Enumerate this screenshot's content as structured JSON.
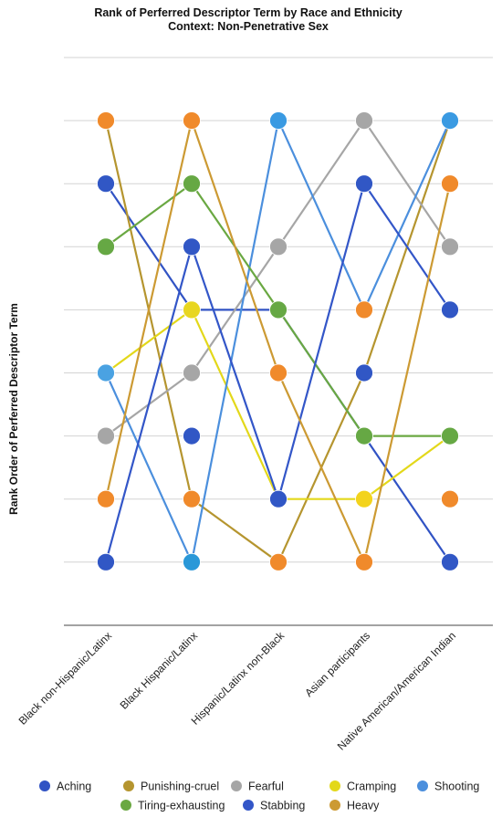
{
  "chart_data": {
    "type": "line",
    "title": "Rank of Perferred Descriptor Term by Race and Ethnicity",
    "subtitle": "Context: Non-Penetrative Sex",
    "ylabel": "Rank Order of Perferred Descriptor Term",
    "xlabel": "",
    "categories": [
      "Black non-Hispanic/Latinx",
      "Black Hispanic/Latinx",
      "Hispanic/Latinx non-Black",
      "Asian participants",
      "Native American/American Indian"
    ],
    "ylim": [
      0,
      9
    ],
    "y_reversed": true,
    "grid": true,
    "legend_position": "bottom",
    "series": [
      {
        "name": "Aching",
        "color": "#3153c4",
        "values": [
          2,
          4,
          4,
          6,
          8
        ]
      },
      {
        "name": "Punishing-cruel",
        "color": "#b5952f",
        "values": [
          1,
          7,
          8,
          5,
          1
        ]
      },
      {
        "name": "Fearful",
        "color": "#a6a6a6",
        "values": [
          6,
          5,
          3,
          1,
          3
        ]
      },
      {
        "name": "Cramping",
        "color": "#e3d81a",
        "values": [
          5,
          4,
          7,
          7,
          6
        ]
      },
      {
        "name": "Shooting",
        "color": "#4b8fdd",
        "values": [
          5,
          8,
          1,
          4,
          1
        ]
      },
      {
        "name": "Tiring-exhausting",
        "color": "#6aa842",
        "values": [
          3,
          2,
          4,
          6,
          6
        ]
      },
      {
        "name": "Stabbing",
        "color": "#3356c8",
        "values": [
          8,
          3,
          7,
          2,
          4
        ]
      },
      {
        "name": "Heavy",
        "color": "#cc9a33",
        "values": [
          7,
          1,
          5,
          8,
          2
        ]
      }
    ],
    "markers": [
      {
        "category_index": 0,
        "rank": 1,
        "color": "#f08a2b"
      },
      {
        "category_index": 0,
        "rank": 2,
        "color": "#3157c5"
      },
      {
        "category_index": 0,
        "rank": 3,
        "color": "#66a844"
      },
      {
        "category_index": 0,
        "rank": 5,
        "color": "#4aa2e2"
      },
      {
        "category_index": 0,
        "rank": 6,
        "color": "#a6a6a6"
      },
      {
        "category_index": 0,
        "rank": 7,
        "color": "#f08a2b"
      },
      {
        "category_index": 0,
        "rank": 8,
        "color": "#3157c5"
      },
      {
        "category_index": 1,
        "rank": 1,
        "color": "#f08a2b"
      },
      {
        "category_index": 1,
        "rank": 2,
        "color": "#66a844"
      },
      {
        "category_index": 1,
        "rank": 3,
        "color": "#3157c5"
      },
      {
        "category_index": 1,
        "rank": 4,
        "color": "#e8d620"
      },
      {
        "category_index": 1,
        "rank": 5,
        "color": "#a6a6a6"
      },
      {
        "category_index": 1,
        "rank": 6,
        "color": "#3157c5"
      },
      {
        "category_index": 1,
        "rank": 7,
        "color": "#f08a2b"
      },
      {
        "category_index": 1,
        "rank": 8,
        "color": "#2a98d8"
      },
      {
        "category_index": 2,
        "rank": 1,
        "color": "#3a9ae2"
      },
      {
        "category_index": 2,
        "rank": 3,
        "color": "#a6a6a6"
      },
      {
        "category_index": 2,
        "rank": 4,
        "color": "#66a844"
      },
      {
        "category_index": 2,
        "rank": 5,
        "color": "#f08a2b"
      },
      {
        "category_index": 2,
        "rank": 7,
        "color": "#3157c5"
      },
      {
        "category_index": 2,
        "rank": 8,
        "color": "#f08a2b"
      },
      {
        "category_index": 3,
        "rank": 1,
        "color": "#a6a6a6"
      },
      {
        "category_index": 3,
        "rank": 2,
        "color": "#3157c5"
      },
      {
        "category_index": 3,
        "rank": 4,
        "color": "#f08a2b"
      },
      {
        "category_index": 3,
        "rank": 5,
        "color": "#3157c5"
      },
      {
        "category_index": 3,
        "rank": 6,
        "color": "#66a844"
      },
      {
        "category_index": 3,
        "rank": 7,
        "color": "#f3d31c"
      },
      {
        "category_index": 3,
        "rank": 8,
        "color": "#f08a2b"
      },
      {
        "category_index": 4,
        "rank": 1,
        "color": "#3a9ae2"
      },
      {
        "category_index": 4,
        "rank": 2,
        "color": "#f08a2b"
      },
      {
        "category_index": 4,
        "rank": 3,
        "color": "#a6a6a6"
      },
      {
        "category_index": 4,
        "rank": 4,
        "color": "#3157c5"
      },
      {
        "category_index": 4,
        "rank": 6,
        "color": "#66a844"
      },
      {
        "category_index": 4,
        "rank": 7,
        "color": "#f08a2b"
      },
      {
        "category_index": 4,
        "rank": 8,
        "color": "#3157c5"
      }
    ]
  }
}
